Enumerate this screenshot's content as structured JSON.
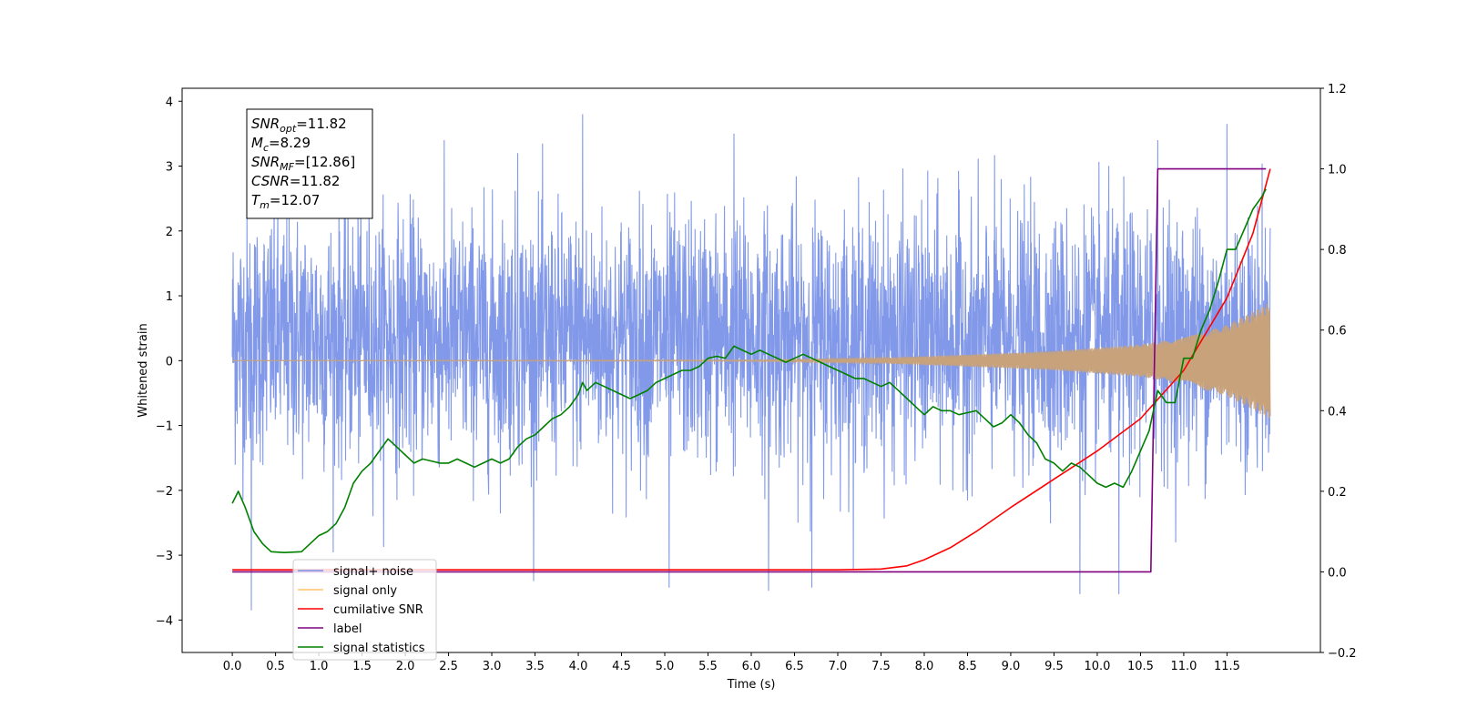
{
  "chart_data": {
    "type": "line",
    "xlabel": "Time (s)",
    "ylabel_left": "Whitened strain",
    "xlim": [
      -0.58,
      12.58
    ],
    "ylim_left": [
      -4.5,
      4.2
    ],
    "ylim_right": [
      -0.2,
      1.2
    ],
    "x_ticks": [
      "0.0",
      "0.5",
      "1.0",
      "1.5",
      "2.0",
      "2.5",
      "3.0",
      "3.5",
      "4.0",
      "4.5",
      "5.0",
      "5.5",
      "6.0",
      "6.5",
      "7.0",
      "7.5",
      "8.0",
      "8.5",
      "9.0",
      "9.5",
      "10.0",
      "10.5",
      "11.0",
      "11.5"
    ],
    "y_left_ticks": [
      "4",
      "3",
      "2",
      "1",
      "0",
      "−1",
      "−2",
      "−3",
      "−4"
    ],
    "y_right_ticks": [
      "1.2",
      "1.0",
      "0.8",
      "0.6",
      "0.4",
      "0.2",
      "0.0",
      "−0.2"
    ],
    "annotation": {
      "lines": [
        {
          "main": "SNR",
          "sub": "opt",
          "value": "=11.82"
        },
        {
          "main": "M",
          "sub": "c",
          "value": "=8.29"
        },
        {
          "main": "SNR",
          "sub": "MF",
          "value": "=[12.86]"
        },
        {
          "main": "CSNR",
          "sub": "",
          "value": "=11.82"
        },
        {
          "main": "T",
          "sub": "m",
          "value": "=12.07"
        }
      ]
    },
    "legend": {
      "placement": "lower-left",
      "entries": [
        {
          "label": "signal+ noise",
          "color": "#7b94e8"
        },
        {
          "label": "signal only",
          "color": "#ffc46a"
        },
        {
          "label": "cumilative SNR",
          "color": "#ff0000"
        },
        {
          "label": "label",
          "color": "#800080"
        },
        {
          "label": "signal statistics",
          "color": "#008000"
        }
      ]
    },
    "series": [
      {
        "name": "signal+ noise",
        "axis": "left",
        "color": "#7b94e8",
        "x_range": [
          0,
          12.0
        ],
        "band_core": [
          -1.5,
          2.4
        ],
        "notable_peaks": [
          {
            "x": 0.22,
            "y": -3.85
          },
          {
            "x": 4.05,
            "y": 3.8
          },
          {
            "x": 11.5,
            "y": 3.65
          },
          {
            "x": 5.05,
            "y": -3.5
          },
          {
            "x": 9.8,
            "y": -3.6
          },
          {
            "x": 10.25,
            "y": -3.6
          },
          {
            "x": 6.2,
            "y": -3.55
          },
          {
            "x": 6.7,
            "y": -3.5
          },
          {
            "x": 10.7,
            "y": 3.4
          },
          {
            "x": 3.3,
            "y": 3.2
          },
          {
            "x": 5.8,
            "y": 3.5
          }
        ]
      },
      {
        "name": "signal only",
        "axis": "left",
        "color": "#c8a27a",
        "x_range": [
          0,
          12.0
        ],
        "envelope": [
          {
            "x": 0.0,
            "amp": 0.0
          },
          {
            "x": 6.0,
            "amp": 0.01
          },
          {
            "x": 7.5,
            "amp": 0.04
          },
          {
            "x": 8.5,
            "amp": 0.09
          },
          {
            "x": 9.5,
            "amp": 0.15
          },
          {
            "x": 10.5,
            "amp": 0.25
          },
          {
            "x": 11.0,
            "amp": 0.35
          },
          {
            "x": 11.5,
            "amp": 0.55
          },
          {
            "x": 12.0,
            "amp": 0.9
          }
        ]
      },
      {
        "name": "cumilative SNR",
        "axis": "right",
        "color": "#ff0000",
        "x": [
          0.0,
          7.0,
          7.5,
          7.8,
          8.0,
          8.3,
          8.6,
          9.0,
          9.5,
          10.0,
          10.5,
          11.0,
          11.5,
          11.8,
          12.0
        ],
        "y": [
          0.005,
          0.005,
          0.007,
          0.015,
          0.03,
          0.06,
          0.1,
          0.16,
          0.23,
          0.3,
          0.38,
          0.5,
          0.68,
          0.84,
          1.0
        ]
      },
      {
        "name": "label",
        "axis": "right",
        "color": "#800080",
        "x": [
          0.0,
          10.62,
          10.7,
          11.95
        ],
        "y": [
          0.0,
          0.0,
          1.0,
          1.0
        ]
      },
      {
        "name": "signal statistics",
        "axis": "right",
        "color": "#008000",
        "x": [
          0.0,
          0.07,
          0.15,
          0.25,
          0.35,
          0.45,
          0.6,
          0.8,
          0.9,
          1.0,
          1.1,
          1.2,
          1.3,
          1.4,
          1.5,
          1.6,
          1.7,
          1.8,
          1.9,
          2.0,
          2.1,
          2.2,
          2.3,
          2.4,
          2.5,
          2.6,
          2.7,
          2.8,
          2.9,
          3.0,
          3.1,
          3.2,
          3.3,
          3.4,
          3.5,
          3.6,
          3.7,
          3.8,
          3.9,
          4.0,
          4.05,
          4.1,
          4.2,
          4.3,
          4.4,
          4.5,
          4.6,
          4.7,
          4.8,
          4.9,
          5.0,
          5.1,
          5.2,
          5.3,
          5.4,
          5.5,
          5.6,
          5.7,
          5.8,
          5.9,
          6.0,
          6.1,
          6.2,
          6.3,
          6.4,
          6.5,
          6.6,
          6.7,
          6.8,
          6.9,
          7.0,
          7.1,
          7.2,
          7.3,
          7.4,
          7.5,
          7.6,
          7.7,
          7.8,
          7.9,
          8.0,
          8.1,
          8.2,
          8.3,
          8.4,
          8.5,
          8.6,
          8.7,
          8.8,
          8.9,
          9.0,
          9.1,
          9.2,
          9.3,
          9.4,
          9.5,
          9.6,
          9.7,
          9.8,
          9.9,
          10.0,
          10.1,
          10.2,
          10.3,
          10.4,
          10.5,
          10.6,
          10.7,
          10.8,
          10.9,
          11.0,
          11.1,
          11.2,
          11.3,
          11.4,
          11.5,
          11.6,
          11.7,
          11.8,
          11.9,
          11.95
        ],
        "y": [
          0.17,
          0.2,
          0.16,
          0.1,
          0.07,
          0.05,
          0.048,
          0.05,
          0.07,
          0.09,
          0.1,
          0.12,
          0.16,
          0.22,
          0.25,
          0.27,
          0.3,
          0.33,
          0.31,
          0.29,
          0.27,
          0.28,
          0.275,
          0.27,
          0.27,
          0.28,
          0.27,
          0.26,
          0.27,
          0.28,
          0.27,
          0.28,
          0.31,
          0.33,
          0.34,
          0.36,
          0.38,
          0.39,
          0.41,
          0.44,
          0.47,
          0.45,
          0.47,
          0.46,
          0.45,
          0.44,
          0.43,
          0.44,
          0.45,
          0.47,
          0.48,
          0.49,
          0.5,
          0.5,
          0.51,
          0.53,
          0.535,
          0.53,
          0.56,
          0.55,
          0.54,
          0.55,
          0.54,
          0.53,
          0.52,
          0.53,
          0.54,
          0.53,
          0.52,
          0.51,
          0.5,
          0.49,
          0.48,
          0.48,
          0.47,
          0.46,
          0.47,
          0.45,
          0.43,
          0.41,
          0.39,
          0.41,
          0.4,
          0.4,
          0.39,
          0.395,
          0.4,
          0.38,
          0.36,
          0.37,
          0.39,
          0.37,
          0.34,
          0.32,
          0.28,
          0.27,
          0.25,
          0.27,
          0.26,
          0.24,
          0.22,
          0.21,
          0.22,
          0.21,
          0.25,
          0.3,
          0.35,
          0.45,
          0.42,
          0.42,
          0.53,
          0.53,
          0.6,
          0.65,
          0.72,
          0.8,
          0.8,
          0.85,
          0.9,
          0.93,
          0.95
        ]
      }
    ]
  }
}
